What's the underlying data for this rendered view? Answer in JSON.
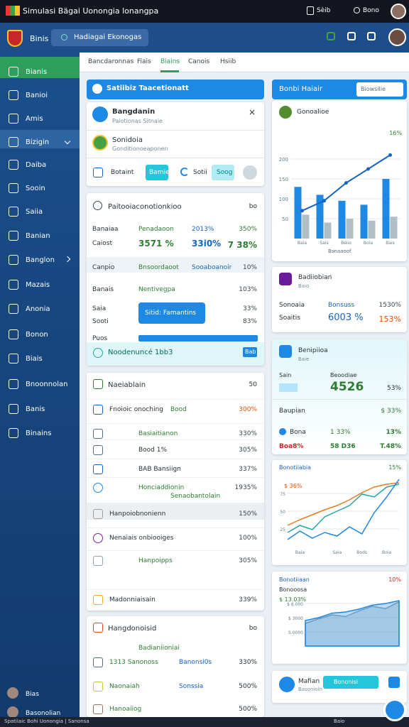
{
  "topbar": {
    "title": "Simulasi Bägai Uonongia  lonangpa",
    "links": [
      "Sèib",
      "Bono"
    ]
  },
  "header": {
    "brand": "Binis",
    "search": "Hadiagai Ekonogas"
  },
  "sidebar": {
    "items": [
      "Bianis",
      "Banioi",
      "Amis",
      "Bizigin",
      "Daiba",
      "Sooin",
      "Saiia",
      "Banian",
      "Banglon",
      "Mazais",
      "Anonia",
      "Bonon",
      "Biais",
      "Bnoonnolan",
      "Banis",
      "Binains"
    ],
    "footer": [
      "Bias",
      "Basonolian"
    ]
  },
  "tabs": [
    "Bancdaronnas",
    "Fiais",
    "Biains",
    "Canois",
    "Hsiib"
  ],
  "left": {
    "banner": "Satiibiz Taacetionatt",
    "profile": {
      "name": "Bangdanin",
      "sub": "Paiotionas Sitnaie",
      "org": "Sonidoia",
      "org_sub": "Gonditionoeaponen",
      "actions": [
        "Botaint",
        "Bamie",
        "Sotii",
        "Soog"
      ]
    },
    "summary": {
      "title": "Paitooiaconotionkioo",
      "badge": "bo",
      "rows": [
        [
          "Banaiaa",
          "Penadaoon",
          "2013%",
          "350%"
        ],
        [
          "Caiost",
          "3571 %",
          "33i0%",
          "7 38%"
        ],
        [
          "Canpio",
          "Bnsoordaoot",
          "Sooaboanoir",
          "10%"
        ],
        [
          "Banais",
          "Nentivegpa",
          "103%"
        ],
        [
          "Saia",
          "33%"
        ],
        [
          "Sooti",
          "83%"
        ]
      ],
      "button": "Sitid: Famantins",
      "progress": "Puos",
      "footer": "Noodenuncé 1bb3",
      "footer_chip": "Bab"
    },
    "list": {
      "title": "Naeiablain",
      "badge": "50",
      "rows": [
        [
          "Fnoioic onoching",
          "Bood",
          "300%"
        ],
        [
          "Basiaitianon",
          "330%"
        ],
        [
          "Bood 1%",
          "305%"
        ],
        [
          "BAB Bansiign",
          "337%"
        ],
        [
          "Honciaddionin",
          "Senaobantolain",
          "1935%"
        ],
        [
          "Hanpoiobnonienn",
          "150%"
        ],
        [
          "Nenaiais onbiooiges",
          "100%"
        ],
        [
          "Hanpoipps",
          "305%"
        ],
        [
          "Madonniaisain",
          "339%"
        ]
      ]
    },
    "notes": {
      "title": "Hangdonoisid",
      "badge": "bo",
      "rows": [
        [
          "Badianiioniai"
        ],
        [
          "1313 Sanonoss",
          "Banonsi0s",
          "330%"
        ],
        [
          "Naonaiah",
          "Sonssia",
          "500%"
        ],
        [
          "Hanoaiiog",
          "500%"
        ]
      ]
    }
  },
  "right": {
    "header": {
      "title": "Bonbi Haiair",
      "select": "Biowsilie"
    },
    "bar_chart": {
      "type": "bar",
      "title": "Gonoalioe",
      "badge": "16%",
      "xlabel": "Bsnaaoof",
      "categories": [
        "Baia",
        "Sais",
        "Beiio",
        "Boia",
        "Bais"
      ],
      "series": [
        {
          "color": "#1e88e5",
          "values": [
            130,
            110,
            95,
            85,
            150
          ]
        },
        {
          "color": "#b0bec5",
          "values": [
            60,
            40,
            50,
            45,
            55
          ]
        }
      ],
      "line": {
        "color": "#1565c0",
        "values": [
          70,
          95,
          140,
          175,
          210
        ]
      },
      "ylim": [
        0,
        250
      ],
      "yticks": [
        50,
        100,
        150,
        200
      ]
    },
    "stats": {
      "title": "Badiiobian",
      "sub": "Baio",
      "rows": [
        [
          "Sonoaia",
          "Bonsuss",
          "1530%"
        ],
        [
          "Soaitis",
          "6003 %",
          "153%"
        ]
      ]
    },
    "metrics": {
      "title": "Benipiioa",
      "sub": "Baie",
      "head": [
        "Sain",
        "Beoodiae"
      ],
      "big": "4526",
      "big_pct": "53%",
      "label": "Baupian",
      "label_val": "$ 33%",
      "rows": [
        [
          "Bona",
          "1 33%",
          "13%"
        ],
        [
          "Boa8%",
          "58 D36",
          "T.48%"
        ]
      ]
    },
    "line_chart": {
      "type": "line",
      "title": "Bonotiiabia",
      "badge": "15%",
      "subtitle": "$ 36%",
      "x": [
        0,
        1,
        2,
        3,
        4,
        5,
        6,
        7,
        8,
        9
      ],
      "xlim": [
        0,
        9
      ],
      "xticks": [
        {
          "value": 1,
          "label": "Baia"
        },
        {
          "value": 4,
          "label": "Saia"
        },
        {
          "value": 6,
          "label": "Bods"
        },
        {
          "value": 8,
          "label": "Boia"
        }
      ],
      "series": [
        {
          "color": "#e67e22",
          "values": [
            30,
            38,
            45,
            52,
            58,
            66,
            76,
            84,
            88,
            90
          ]
        },
        {
          "color": "#26a69a",
          "values": [
            20,
            30,
            24,
            42,
            50,
            58,
            74,
            70,
            84,
            88
          ]
        },
        {
          "color": "#1e88e5",
          "values": [
            10,
            22,
            12,
            20,
            15,
            28,
            18,
            48,
            70,
            95
          ]
        }
      ],
      "ylim": [
        0,
        100
      ],
      "yticks": [
        25,
        50,
        75
      ]
    },
    "area_chart": {
      "type": "area",
      "title": "Bonotiiaan",
      "badge": "10%",
      "subtitle": "Bonooosa",
      "value": "$ 13.03%",
      "x": [
        0,
        1,
        2,
        3,
        4,
        5,
        6,
        7
      ],
      "xlim": [
        0,
        7
      ],
      "series": [
        {
          "color": "#90a4ae",
          "values": [
            40,
            48,
            55,
            52,
            62,
            70,
            66,
            78
          ]
        },
        {
          "color": "#1e88e5",
          "values": [
            45,
            50,
            58,
            60,
            65,
            72,
            75,
            80
          ]
        }
      ],
      "ylim": [
        0,
        100
      ],
      "yticks": [
        {
          "value": 25,
          "label": "S.0000"
        },
        {
          "value": 50,
          "label": "$ 3000"
        },
        {
          "value": 75,
          "label": "$ 6 000"
        }
      ]
    },
    "footer_card": {
      "title": "Mafian",
      "sub": "Basonioin",
      "button": "Bononisi"
    }
  },
  "footer": {
    "left": "Spatiiaic Bohi Uonongia | Sanonsa",
    "right": "Baio"
  }
}
